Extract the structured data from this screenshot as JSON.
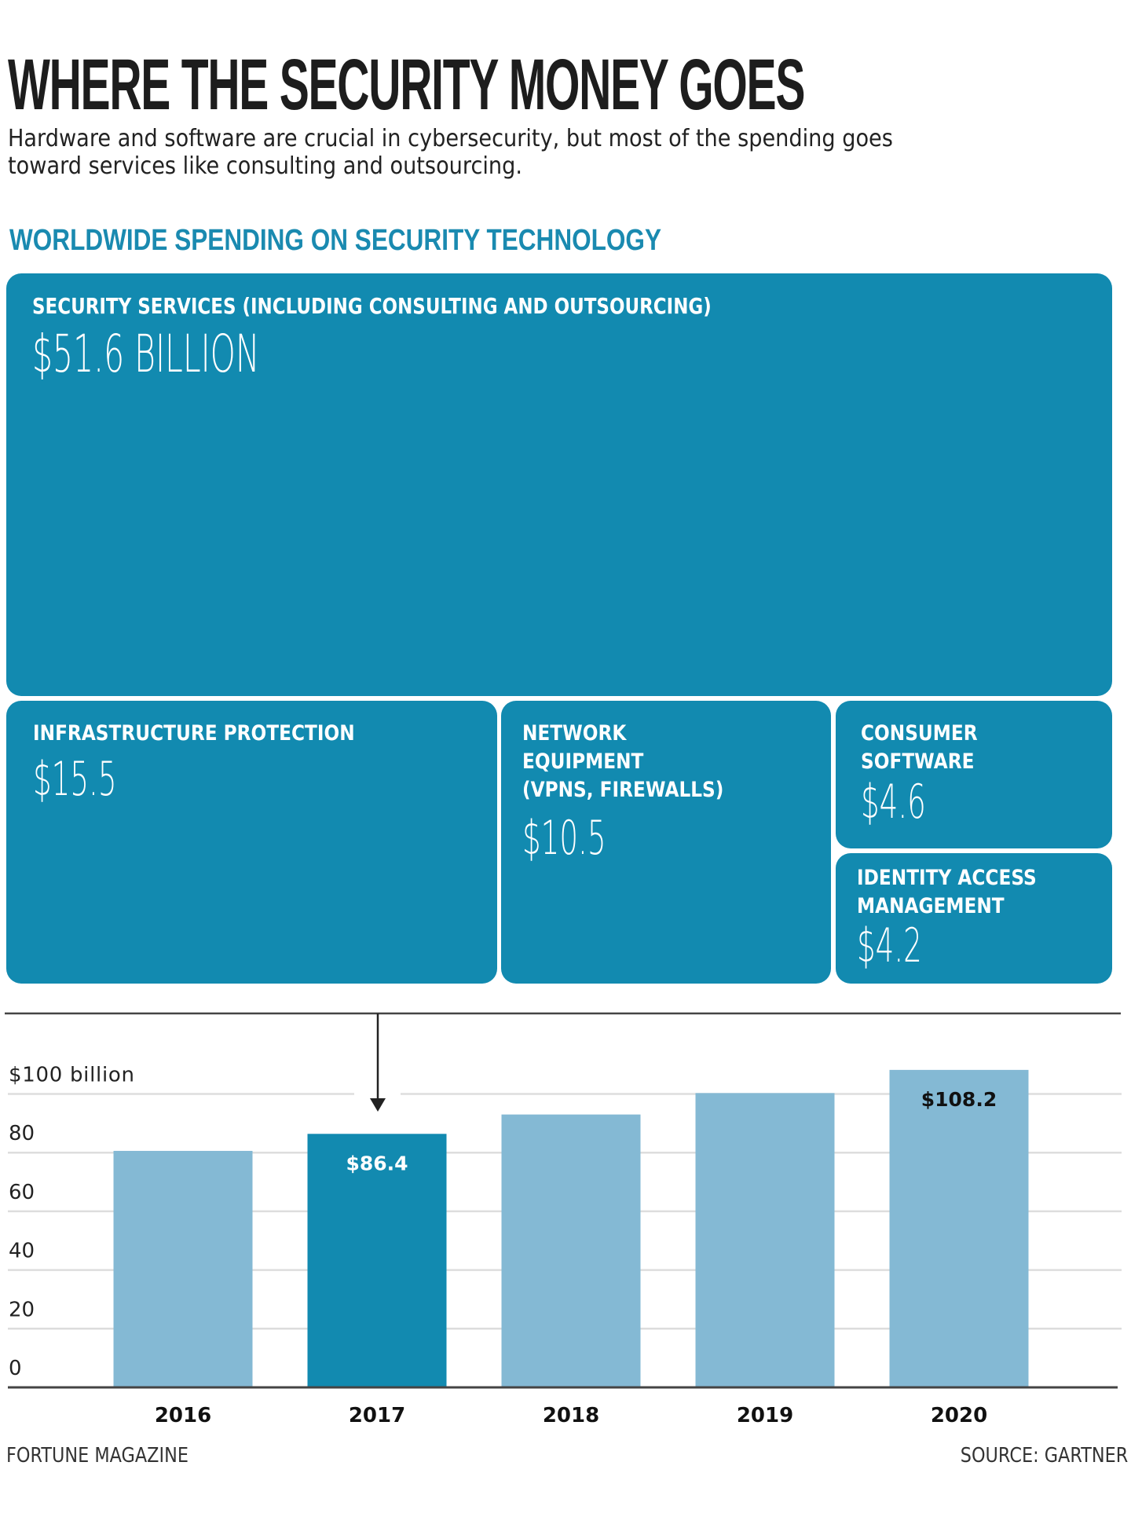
{
  "title": "WHERE THE SECURITY MONEY GOES",
  "subtitle_lines": [
    "Hardware and software are crucial in cybersecurity, but most of the spending goes",
    "toward services like consulting and outsourcing."
  ],
  "section_heading": "WORLDWIDE SPENDING ON SECURITY TECHNOLOGY",
  "colors": {
    "tile": "#128ab0",
    "bar_default": "#84b9d4",
    "bar_highlight": "#128ab0",
    "heading_accent": "#1a8ab0",
    "gridline": "#dddddd",
    "axis": "#444444"
  },
  "treemap": {
    "units": "billion USD",
    "tiles": [
      {
        "id": "services",
        "label": "SECURITY SERVICES (INCLUDING CONSULTING AND OUTSOURCING)",
        "value": 51.6,
        "value_text": "$51.6 BILLION"
      },
      {
        "id": "infra",
        "label": "INFRASTRUCTURE PROTECTION",
        "value": 15.5,
        "value_text": "$15.5"
      },
      {
        "id": "network",
        "label": "NETWORK\nEQUIPMENT\n(VPNS, FIREWALLS)",
        "value": 10.5,
        "value_text": "$10.5"
      },
      {
        "id": "consumer",
        "label": "CONSUMER\nSOFTWARE",
        "value": 4.6,
        "value_text": "$4.6"
      },
      {
        "id": "identity",
        "label": "IDENTITY ACCESS\nMANAGEMENT",
        "value": 4.2,
        "value_text": "$4.2"
      }
    ]
  },
  "chart_data": {
    "type": "bar",
    "title": "",
    "xlabel": "",
    "ylabel": "$100 billion",
    "categories": [
      "2016",
      "2017",
      "2018",
      "2019",
      "2020"
    ],
    "values": [
      80.6,
      86.4,
      93.0,
      100.3,
      108.2
    ],
    "data_labels": [
      "",
      "$86.4",
      "",
      "",
      "$108.2"
    ],
    "highlight_index": 1,
    "ylim": [
      0,
      110
    ],
    "yticks": [
      0,
      20,
      40,
      60,
      80,
      100
    ],
    "ytick_labels": [
      "0",
      "20",
      "40",
      "60",
      "80",
      "$100 billion"
    ],
    "grid": true,
    "annotation": "arrow from treemap pointing to 2017 bar"
  },
  "footer": {
    "left": "FORTUNE MAGAZINE",
    "right": "SOURCE: GARTNER"
  }
}
